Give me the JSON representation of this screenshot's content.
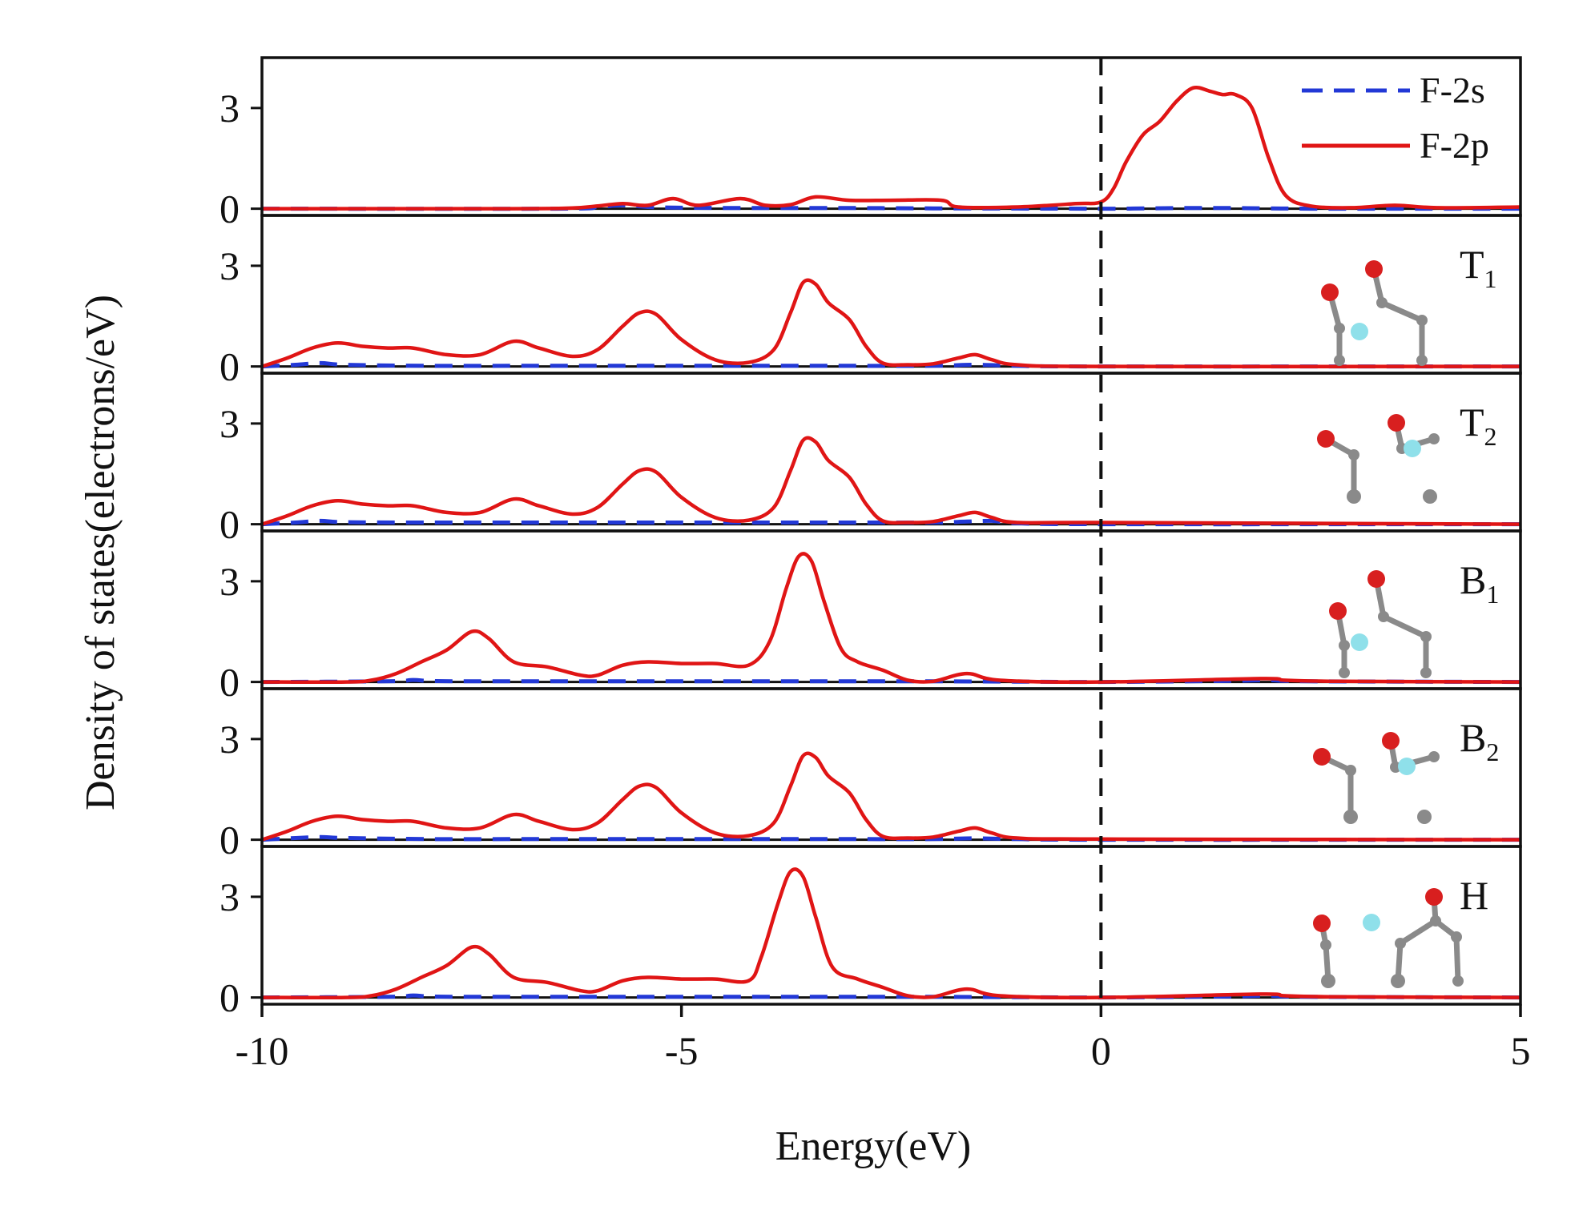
{
  "chart_data": {
    "type": "line",
    "title": "",
    "xlabel": "Energy(eV)",
    "ylabel": "Density of states(electrons/eV)",
    "xlim": [
      -10,
      5
    ],
    "ylim": [
      -0.2,
      4.5
    ],
    "x_ticks": [
      "-10",
      "-5",
      "0",
      "5"
    ],
    "y_ticks": [
      "0",
      "3"
    ],
    "fermi_level": 0,
    "colors": {
      "f2s": "#2238d6",
      "f2p": "#e01515",
      "fermi": "#111111"
    },
    "legend": {
      "position": "top-right",
      "items": [
        {
          "label": "F-2s",
          "style": "dashed",
          "color": "#2238d6"
        },
        {
          "label": "F-2p",
          "style": "solid",
          "color": "#e01515"
        }
      ]
    },
    "panels": [
      {
        "name": "pristine",
        "label": "",
        "sub": "",
        "series": [
          {
            "name": "F-2s",
            "x": [
              -10,
              -6.5,
              -6,
              -5.7,
              -5.4,
              -5,
              -4.3,
              -3,
              -2,
              0,
              0.5,
              1,
              1.5,
              2,
              2.5,
              3.5,
              5
            ],
            "y": [
              0,
              0,
              0.05,
              0.1,
              0.05,
              0.03,
              0.02,
              0.02,
              0.01,
              0,
              0.01,
              0.02,
              0.02,
              0.01,
              0,
              0,
              0
            ]
          },
          {
            "name": "F-2p",
            "x": [
              -10,
              -7,
              -6.3,
              -6,
              -5.7,
              -5.4,
              -5.1,
              -4.8,
              -4.3,
              -4,
              -3.7,
              -3.4,
              -3,
              -2.5,
              -1.9,
              -1.7,
              -1,
              -0.3,
              0,
              0.15,
              0.3,
              0.5,
              0.7,
              0.9,
              1.1,
              1.3,
              1.45,
              1.6,
              1.8,
              2.0,
              2.2,
              2.5,
              3,
              3.5,
              4,
              5
            ],
            "y": [
              0,
              0,
              0.02,
              0.08,
              0.15,
              0.1,
              0.3,
              0.1,
              0.3,
              0.1,
              0.12,
              0.35,
              0.25,
              0.25,
              0.25,
              0.05,
              0.05,
              0.15,
              0.2,
              0.6,
              1.4,
              2.2,
              2.6,
              3.2,
              3.6,
              3.5,
              3.4,
              3.4,
              3.0,
              1.5,
              0.4,
              0.08,
              0.03,
              0.1,
              0.03,
              0.05
            ]
          }
        ]
      },
      {
        "name": "T1",
        "label": "T",
        "sub": "1",
        "series": [
          {
            "name": "F-2s",
            "x": [
              -10,
              -9.6,
              -9.3,
              -9,
              -8,
              -7,
              -6,
              -5,
              -4,
              -3,
              -2,
              -1.5,
              -1,
              0,
              5
            ],
            "y": [
              0,
              0.05,
              0.1,
              0.05,
              0.02,
              0.02,
              0.02,
              0.02,
              0.02,
              0.02,
              0.02,
              0.05,
              0.02,
              0,
              0
            ]
          },
          {
            "name": "F-2p",
            "x": [
              -10,
              -9.7,
              -9.4,
              -9.1,
              -8.8,
              -8.5,
              -8.2,
              -7.8,
              -7.4,
              -7.0,
              -6.7,
              -6.3,
              -6.0,
              -5.7,
              -5.5,
              -5.3,
              -5.0,
              -4.6,
              -4.2,
              -3.9,
              -3.7,
              -3.55,
              -3.4,
              -3.25,
              -3.0,
              -2.8,
              -2.6,
              -2.3,
              -2.0,
              -1.7,
              -1.5,
              -1.3,
              -1.0,
              0,
              5
            ],
            "y": [
              0,
              0.25,
              0.55,
              0.7,
              0.6,
              0.55,
              0.55,
              0.35,
              0.35,
              0.75,
              0.55,
              0.3,
              0.5,
              1.2,
              1.6,
              1.55,
              0.8,
              0.2,
              0.12,
              0.5,
              1.6,
              2.5,
              2.45,
              1.9,
              1.4,
              0.6,
              0.1,
              0.05,
              0.08,
              0.25,
              0.35,
              0.2,
              0.05,
              0,
              0
            ]
          }
        ]
      },
      {
        "name": "T2",
        "label": "T",
        "sub": "2",
        "series": [
          {
            "name": "F-2s",
            "x": [
              -10,
              -9.6,
              -9.3,
              -9,
              -8,
              -7,
              -6,
              -5,
              -4,
              -3,
              -2,
              -1.6,
              -1.3,
              -1,
              0,
              5
            ],
            "y": [
              0,
              0.05,
              0.1,
              0.06,
              0.05,
              0.05,
              0.05,
              0.05,
              0.05,
              0.05,
              0.05,
              0.08,
              0.1,
              0.03,
              0,
              0
            ]
          },
          {
            "name": "F-2p",
            "x": [
              -10,
              -9.7,
              -9.4,
              -9.1,
              -8.8,
              -8.5,
              -8.2,
              -7.8,
              -7.4,
              -7.0,
              -6.7,
              -6.3,
              -6.0,
              -5.7,
              -5.5,
              -5.3,
              -5.0,
              -4.6,
              -4.2,
              -3.9,
              -3.7,
              -3.55,
              -3.4,
              -3.25,
              -3.0,
              -2.8,
              -2.6,
              -2.3,
              -2.0,
              -1.7,
              -1.5,
              -1.3,
              -1.0,
              0,
              5
            ],
            "y": [
              0,
              0.25,
              0.55,
              0.7,
              0.6,
              0.55,
              0.55,
              0.35,
              0.35,
              0.75,
              0.55,
              0.3,
              0.5,
              1.2,
              1.6,
              1.55,
              0.8,
              0.2,
              0.12,
              0.5,
              1.6,
              2.5,
              2.45,
              1.9,
              1.4,
              0.6,
              0.1,
              0.05,
              0.08,
              0.25,
              0.35,
              0.2,
              0.05,
              0.05,
              0
            ]
          }
        ]
      },
      {
        "name": "B1",
        "label": "B",
        "sub": "1",
        "series": [
          {
            "name": "F-2s",
            "x": [
              -10,
              -8.5,
              -8.2,
              -8.0,
              -7.5,
              -6,
              -5,
              -4,
              -3,
              -2,
              -1,
              0,
              1.5,
              2,
              2.5,
              5
            ],
            "y": [
              0,
              0.02,
              0.06,
              0.03,
              0.02,
              0.02,
              0.02,
              0.02,
              0.02,
              0.02,
              0.01,
              0,
              0.03,
              0.05,
              0.02,
              0
            ]
          },
          {
            "name": "F-2p",
            "x": [
              -10,
              -9,
              -8.7,
              -8.4,
              -8.1,
              -7.8,
              -7.5,
              -7.3,
              -7.0,
              -6.6,
              -6.2,
              -6.0,
              -5.7,
              -5.4,
              -5.0,
              -4.6,
              -4.2,
              -3.95,
              -3.75,
              -3.6,
              -3.45,
              -3.3,
              -3.1,
              -2.9,
              -2.6,
              -2.3,
              -2.0,
              -1.6,
              -1.2,
              0,
              1.9,
              2.2,
              2.8,
              5
            ],
            "y": [
              0,
              0,
              0.05,
              0.25,
              0.6,
              0.95,
              1.5,
              1.3,
              0.6,
              0.45,
              0.2,
              0.2,
              0.5,
              0.6,
              0.55,
              0.55,
              0.5,
              1.2,
              2.8,
              3.75,
              3.6,
              2.4,
              1.0,
              0.6,
              0.35,
              0.05,
              0.02,
              0.25,
              0.05,
              0,
              0.1,
              0.05,
              0.02,
              0
            ]
          }
        ]
      },
      {
        "name": "B2",
        "label": "B",
        "sub": "2",
        "series": [
          {
            "name": "F-2s",
            "x": [
              -10,
              -9.6,
              -9.3,
              -9,
              -8,
              -7,
              -6,
              -5,
              -4,
              -3,
              -2,
              -1.5,
              -1,
              0,
              5
            ],
            "y": [
              0,
              0.05,
              0.08,
              0.05,
              0.02,
              0.02,
              0.02,
              0.02,
              0.02,
              0.02,
              0.02,
              0.04,
              0.02,
              0,
              0
            ]
          },
          {
            "name": "F-2p",
            "x": [
              -10,
              -9.7,
              -9.4,
              -9.1,
              -8.8,
              -8.5,
              -8.2,
              -7.8,
              -7.4,
              -7.0,
              -6.7,
              -6.3,
              -6.0,
              -5.7,
              -5.5,
              -5.3,
              -5.0,
              -4.6,
              -4.2,
              -3.9,
              -3.7,
              -3.55,
              -3.4,
              -3.25,
              -3.0,
              -2.8,
              -2.6,
              -2.3,
              -2.0,
              -1.7,
              -1.5,
              -1.3,
              -1.0,
              0,
              5
            ],
            "y": [
              0,
              0.25,
              0.55,
              0.7,
              0.6,
              0.55,
              0.55,
              0.35,
              0.35,
              0.75,
              0.55,
              0.3,
              0.5,
              1.2,
              1.6,
              1.55,
              0.8,
              0.2,
              0.12,
              0.5,
              1.6,
              2.5,
              2.45,
              1.9,
              1.4,
              0.6,
              0.1,
              0.05,
              0.08,
              0.25,
              0.35,
              0.2,
              0.05,
              0.02,
              0
            ]
          }
        ]
      },
      {
        "name": "H",
        "label": "H",
        "sub": "",
        "series": [
          {
            "name": "F-2s",
            "x": [
              -10,
              -8.5,
              -8.2,
              -8.0,
              -7.5,
              -6,
              -5,
              -4,
              -3,
              -2,
              -1,
              0,
              1.5,
              2,
              2.5,
              5
            ],
            "y": [
              0,
              0.02,
              0.06,
              0.03,
              0.02,
              0.02,
              0.02,
              0.02,
              0.02,
              0.02,
              0.01,
              0,
              0.03,
              0.05,
              0.02,
              0
            ]
          },
          {
            "name": "F-2p",
            "x": [
              -10,
              -9,
              -8.7,
              -8.4,
              -8.1,
              -7.8,
              -7.5,
              -7.3,
              -7.0,
              -6.6,
              -6.2,
              -6.0,
              -5.7,
              -5.4,
              -5.0,
              -4.6,
              -4.2,
              -4.05,
              -3.85,
              -3.7,
              -3.55,
              -3.4,
              -3.2,
              -2.9,
              -2.6,
              -2.3,
              -2.0,
              -1.6,
              -1.2,
              0,
              1.9,
              2.2,
              2.8,
              5
            ],
            "y": [
              0,
              0,
              0.05,
              0.25,
              0.6,
              0.95,
              1.5,
              1.3,
              0.6,
              0.45,
              0.2,
              0.2,
              0.5,
              0.6,
              0.55,
              0.55,
              0.5,
              1.2,
              2.8,
              3.75,
              3.6,
              2.4,
              0.9,
              0.55,
              0.3,
              0.05,
              0.02,
              0.25,
              0.05,
              0,
              0.1,
              0.05,
              0.02,
              0
            ]
          }
        ]
      }
    ]
  }
}
